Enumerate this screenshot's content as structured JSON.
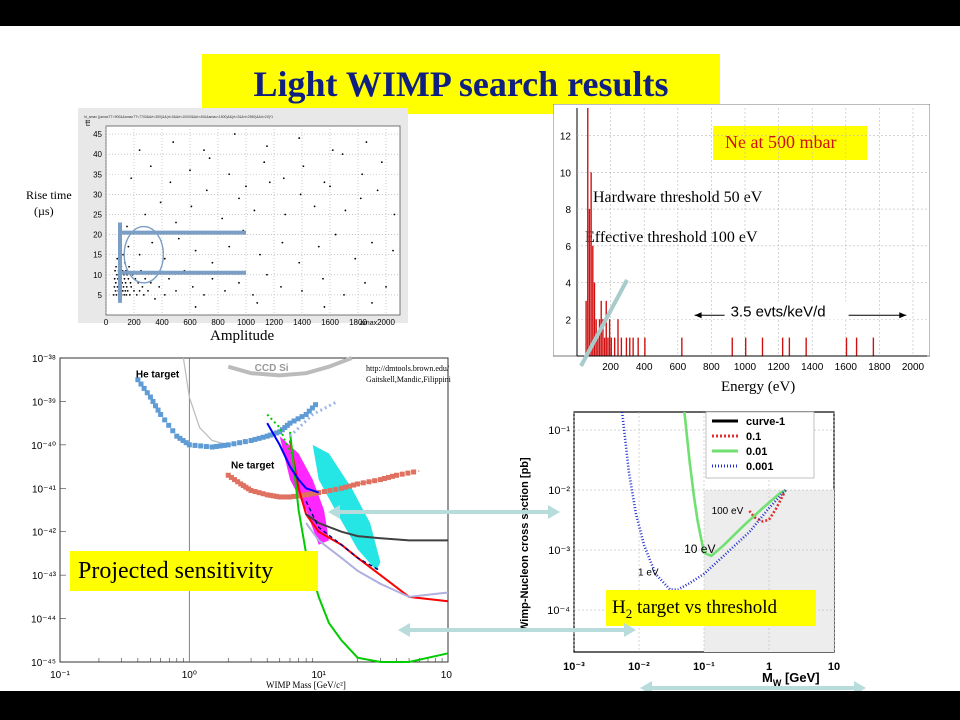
{
  "slide": {
    "title": "Light WIMP search results",
    "projected_label": "Projected sensitivity",
    "h2_label_main": "H",
    "h2_label_sub": "2",
    "h2_label_rest": " target vs threshold",
    "colors": {
      "highlight": "#ffff00",
      "title_text": "#102080",
      "arrow": "#b8dcdc"
    }
  },
  "chart_data": [
    {
      "type": "scatter",
      "id": "risetime-vs-amplitude",
      "header": "ht_amax {(amaxTT>900&&amaxTT<7700&&rt<300)&&(rt>0&&rt<10000&&rt>40&&amax<1500)&&(rt>2&&rt<2550)&&rt>20}*1",
      "ylabel": "Rise time",
      "ylabel_unit": "(µs)",
      "xlabel": "Amplitude",
      "y_axis_tag": "rtt",
      "x_axis_tag": "amax",
      "xlim": [
        0,
        2100
      ],
      "ylim": [
        0,
        47
      ],
      "x_ticks": [
        0,
        200,
        400,
        600,
        800,
        1000,
        1200,
        1400,
        1600,
        1800,
        2000
      ],
      "y_ticks": [
        5,
        10,
        15,
        20,
        25,
        30,
        35,
        40,
        45
      ],
      "grid": true,
      "points": [
        [
          55,
          5
        ],
        [
          60,
          7
        ],
        [
          62,
          9
        ],
        [
          65,
          11
        ],
        [
          68,
          6
        ],
        [
          70,
          8
        ],
        [
          72,
          12
        ],
        [
          75,
          5
        ],
        [
          78,
          10
        ],
        [
          80,
          14
        ],
        [
          82,
          7
        ],
        [
          85,
          9
        ],
        [
          88,
          6
        ],
        [
          90,
          11
        ],
        [
          92,
          8
        ],
        [
          95,
          5
        ],
        [
          98,
          13
        ],
        [
          100,
          7
        ],
        [
          102,
          10
        ],
        [
          105,
          6
        ],
        [
          108,
          9
        ],
        [
          110,
          12
        ],
        [
          112,
          5
        ],
        [
          115,
          8
        ],
        [
          118,
          11
        ],
        [
          120,
          6
        ],
        [
          122,
          15
        ],
        [
          125,
          7
        ],
        [
          128,
          10
        ],
        [
          130,
          5
        ],
        [
          132,
          9
        ],
        [
          135,
          13
        ],
        [
          138,
          6
        ],
        [
          140,
          8
        ],
        [
          142,
          11
        ],
        [
          145,
          5
        ],
        [
          148,
          7
        ],
        [
          150,
          10
        ],
        [
          155,
          6
        ],
        [
          160,
          9
        ],
        [
          165,
          12
        ],
        [
          170,
          5
        ],
        [
          175,
          8
        ],
        [
          180,
          7
        ],
        [
          190,
          10
        ],
        [
          200,
          6
        ],
        [
          210,
          9
        ],
        [
          220,
          5
        ],
        [
          230,
          8
        ],
        [
          240,
          6
        ],
        [
          250,
          11
        ],
        [
          260,
          7
        ],
        [
          270,
          5
        ],
        [
          280,
          9
        ],
        [
          300,
          6
        ],
        [
          320,
          8
        ],
        [
          350,
          4
        ],
        [
          380,
          7
        ],
        [
          420,
          5
        ],
        [
          450,
          9
        ],
        [
          500,
          6
        ],
        [
          560,
          11
        ],
        [
          620,
          7
        ],
        [
          700,
          5
        ],
        [
          760,
          9
        ],
        [
          850,
          6
        ],
        [
          950,
          8
        ],
        [
          1050,
          5
        ],
        [
          1150,
          10
        ],
        [
          1250,
          7
        ],
        [
          1400,
          6
        ],
        [
          1550,
          9
        ],
        [
          1700,
          5
        ],
        [
          1850,
          8
        ],
        [
          2000,
          7
        ],
        [
          160,
          17
        ],
        [
          240,
          15
        ],
        [
          330,
          18
        ],
        [
          420,
          14
        ],
        [
          520,
          19
        ],
        [
          640,
          16
        ],
        [
          760,
          13
        ],
        [
          880,
          17
        ],
        [
          980,
          21
        ],
        [
          1100,
          15
        ],
        [
          1260,
          18
        ],
        [
          1380,
          13
        ],
        [
          1520,
          17
        ],
        [
          1640,
          20
        ],
        [
          1780,
          14
        ],
        [
          1900,
          18
        ],
        [
          2050,
          16
        ],
        [
          150,
          22
        ],
        [
          280,
          25
        ],
        [
          390,
          28
        ],
        [
          500,
          23
        ],
        [
          610,
          27
        ],
        [
          720,
          31
        ],
        [
          830,
          24
        ],
        [
          950,
          29
        ],
        [
          1060,
          26
        ],
        [
          1170,
          33
        ],
        [
          1280,
          25
        ],
        [
          1390,
          30
        ],
        [
          1490,
          27
        ],
        [
          1600,
          32
        ],
        [
          1710,
          26
        ],
        [
          1820,
          29
        ],
        [
          1940,
          31
        ],
        [
          2060,
          25
        ],
        [
          180,
          34
        ],
        [
          320,
          37
        ],
        [
          460,
          33
        ],
        [
          600,
          36
        ],
        [
          740,
          39
        ],
        [
          880,
          35
        ],
        [
          1000,
          32
        ],
        [
          1130,
          38
        ],
        [
          1270,
          34
        ],
        [
          1410,
          37
        ],
        [
          1560,
          33
        ],
        [
          1690,
          40
        ],
        [
          1830,
          35
        ],
        [
          1970,
          38
        ],
        [
          240,
          41
        ],
        [
          480,
          43
        ],
        [
          700,
          41
        ],
        [
          920,
          45
        ],
        [
          1150,
          42
        ],
        [
          1380,
          44
        ],
        [
          1620,
          41
        ],
        [
          1860,
          43
        ],
        [
          640,
          2
        ],
        [
          1080,
          3
        ],
        [
          1560,
          2
        ],
        [
          1900,
          3
        ]
      ],
      "annotations": {
        "vertical_band_x": 100,
        "vertical_band_y": [
          3,
          23
        ],
        "horizontal_lines": [
          {
            "y": 20.5,
            "x": [
              100,
              1000
            ]
          },
          {
            "y": 10.5,
            "x": [
              100,
              1000
            ]
          }
        ],
        "circle": {
          "x": 270,
          "y": 15,
          "r_x": 140,
          "r_y": 7
        }
      }
    },
    {
      "type": "bar",
      "id": "ne-energy-spectrum",
      "label": "Ne at 500 mbar",
      "xlabel": "Energy (eV)",
      "xlim": [
        0,
        2000
      ],
      "ylim": [
        0,
        13.5
      ],
      "x_ticks": [
        200,
        400,
        600,
        800,
        1000,
        1200,
        1400,
        1600,
        1800,
        2000
      ],
      "y_ticks": [
        2,
        4,
        6,
        8,
        10,
        12
      ],
      "grid": true,
      "bin_width": 10,
      "bins": [
        [
          50,
          3
        ],
        [
          60,
          13.5
        ],
        [
          70,
          8
        ],
        [
          80,
          10
        ],
        [
          90,
          6
        ],
        [
          100,
          4
        ],
        [
          110,
          2
        ],
        [
          120,
          1
        ],
        [
          130,
          2
        ],
        [
          140,
          3
        ],
        [
          150,
          2
        ],
        [
          160,
          1
        ],
        [
          170,
          3
        ],
        [
          180,
          1
        ],
        [
          190,
          2
        ],
        [
          200,
          1
        ],
        [
          220,
          1
        ],
        [
          240,
          2
        ],
        [
          260,
          1
        ],
        [
          290,
          1
        ],
        [
          310,
          1
        ],
        [
          330,
          1
        ],
        [
          360,
          1
        ],
        [
          400,
          1
        ],
        [
          620,
          1
        ],
        [
          920,
          1
        ],
        [
          1000,
          1
        ],
        [
          1100,
          1
        ],
        [
          1220,
          1
        ],
        [
          1260,
          1
        ],
        [
          1360,
          1
        ],
        [
          1600,
          1
        ],
        [
          1660,
          1
        ],
        [
          1760,
          1
        ]
      ],
      "annotations": [
        {
          "text": "Hardware threshold 50 eV"
        },
        {
          "text": "Effective threshold 100 eV"
        },
        {
          "text": "3.5 evts/keV/d",
          "x_range": [
            700,
            1960
          ],
          "y": 2
        }
      ]
    },
    {
      "type": "line",
      "id": "wimp-exclusion-limits",
      "xlabel": "WIMP Mass [GeV/c²]",
      "xscale": "log",
      "yscale": "log",
      "xlim": [
        0.1,
        100
      ],
      "ylim": [
        1e-45,
        1e-38
      ],
      "x_tick_labels": [
        "10⁻¹",
        "10⁰",
        "10¹",
        "10²"
      ],
      "y_tick_labels": [
        "10⁻³⁸",
        "10⁻³⁹",
        "10⁻⁴⁰",
        "10⁻⁴¹",
        "10⁻⁴²",
        "10⁻⁴³",
        "10⁻⁴⁴",
        "10⁻⁴⁵"
      ],
      "credit_lines": [
        "http://dmtools.brown.edu/",
        "Gaitskell,Mandic,Filippini"
      ],
      "labels": [
        "He target",
        "Ne target",
        "CCD Si"
      ],
      "series": [
        {
          "name": "He target",
          "color": "#5f9bd5",
          "x": [
            0.4,
            0.5,
            0.6,
            0.8,
            1.0,
            1.5,
            2.0,
            3.0,
            4.0,
            5.0,
            6.0,
            8.0,
            10.0
          ],
          "y": [
            -38.5,
            -38.9,
            -39.3,
            -39.8,
            -40.0,
            -40.05,
            -40.0,
            -39.9,
            -39.8,
            -39.7,
            -39.5,
            -39.3,
            -39.0
          ]
        },
        {
          "name": "Ne target",
          "color": "#e07060",
          "x": [
            2.0,
            2.5,
            3.0,
            4.0,
            5.0,
            6.0,
            8.0,
            10.0,
            15.0,
            20.0,
            30.0,
            40.0,
            60.0
          ],
          "y": [
            -40.7,
            -40.9,
            -41.05,
            -41.15,
            -41.2,
            -41.2,
            -41.15,
            -41.1,
            -41.0,
            -40.9,
            -40.8,
            -40.7,
            -40.6
          ]
        },
        {
          "color": "#ff0000",
          "x": [
            6,
            7,
            8,
            10,
            15,
            20,
            30,
            50,
            100
          ],
          "y": [
            -39.9,
            -41.0,
            -41.6,
            -42.0,
            -42.3,
            -42.6,
            -43.0,
            -43.5,
            -43.6
          ]
        },
        {
          "color": "#00cc00",
          "x": [
            6,
            7,
            8,
            10,
            12,
            15,
            20,
            30,
            50,
            100
          ],
          "y": [
            -39.7,
            -41.5,
            -42.5,
            -43.5,
            -44.1,
            -44.5,
            -44.9,
            -45.0,
            -45.0,
            -44.8
          ]
        },
        {
          "color": "#404040",
          "x": [
            8,
            10,
            15,
            20,
            30,
            50,
            100
          ],
          "y": [
            -41.6,
            -41.8,
            -42.0,
            -42.1,
            -42.15,
            -42.2,
            -42.2
          ]
        },
        {
          "color": "#b0b0e0",
          "x": [
            8,
            10,
            15,
            20,
            30,
            50,
            100
          ],
          "y": [
            -41.8,
            -42.2,
            -42.6,
            -42.9,
            -43.2,
            -43.5,
            -43.4
          ]
        },
        {
          "color": "#0000ff",
          "x": [
            4,
            5,
            6,
            7,
            8,
            10
          ],
          "y": [
            -39.5,
            -40.0,
            -40.5,
            -40.8,
            -41.0,
            -41.1
          ]
        },
        {
          "color": "#000080",
          "x": [
            8,
            10,
            15,
            20,
            30
          ],
          "y": [
            -41.3,
            -41.9,
            -42.3,
            -42.6,
            -42.9
          ]
        }
      ],
      "regions": [
        {
          "color": "#ff00ff",
          "x": [
            5,
            7,
            9,
            11,
            12,
            10,
            8,
            6,
            5
          ],
          "y": [
            -39.8,
            -40.2,
            -40.8,
            -41.5,
            -42.2,
            -42.3,
            -41.5,
            -40.8,
            -39.8
          ]
        },
        {
          "color": "#00e0e0",
          "x": [
            9,
            12,
            18,
            25,
            30,
            28,
            20,
            14,
            10,
            9
          ],
          "y": [
            -40.0,
            -40.2,
            -41.0,
            -41.8,
            -42.7,
            -42.9,
            -42.4,
            -41.6,
            -40.8,
            -40.0
          ]
        }
      ]
    },
    {
      "type": "line",
      "id": "h2-cross-section",
      "ylabel": "Wimp-Nucleon cross section [pb]",
      "xlabel": "M",
      "xlabel_sub": "W",
      "xlabel_unit": " [GeV]",
      "xscale": "log",
      "yscale": "log",
      "xlim": [
        0.001,
        10
      ],
      "ylim": [
        2e-05,
        0.2
      ],
      "x_tick_labels": [
        "10⁻³",
        "10⁻²",
        "10⁻¹",
        "1",
        "10"
      ],
      "y_tick_labels": [
        "10⁻¹",
        "10⁻²",
        "10⁻³",
        "10⁻⁴"
      ],
      "legend_position": "top-right",
      "series": [
        {
          "name": "curve-1",
          "color": "#000000",
          "x": [],
          "y": []
        },
        {
          "name": "0.1",
          "color": "#e03030",
          "x": [
            0.5,
            0.6,
            0.8,
            1.0,
            1.3,
            1.8
          ],
          "y": [
            0.0045,
            0.0035,
            0.003,
            0.0032,
            0.005,
            0.01
          ]
        },
        {
          "name": "0.01",
          "color": "#70e070",
          "x": [
            0.05,
            0.06,
            0.07,
            0.08,
            0.1,
            0.13,
            0.2,
            0.4,
            0.8,
            1.5,
            1.8
          ],
          "y": [
            0.2,
            0.03,
            0.008,
            0.003,
            0.0009,
            0.0008,
            0.0012,
            0.0025,
            0.005,
            0.009,
            0.01
          ]
        },
        {
          "name": "0.001",
          "color": "#2030d0",
          "x": [
            0.0055,
            0.007,
            0.009,
            0.012,
            0.018,
            0.03,
            0.04,
            0.06,
            0.1,
            0.2,
            0.5,
            1.0,
            1.8
          ],
          "y": [
            0.2,
            0.02,
            0.004,
            0.0012,
            0.0004,
            0.00022,
            0.00022,
            0.00028,
            0.0004,
            0.0008,
            0.002,
            0.005,
            0.01
          ]
        }
      ],
      "labels": [
        "100 eV",
        "10 eV",
        "1 eV"
      ]
    }
  ]
}
